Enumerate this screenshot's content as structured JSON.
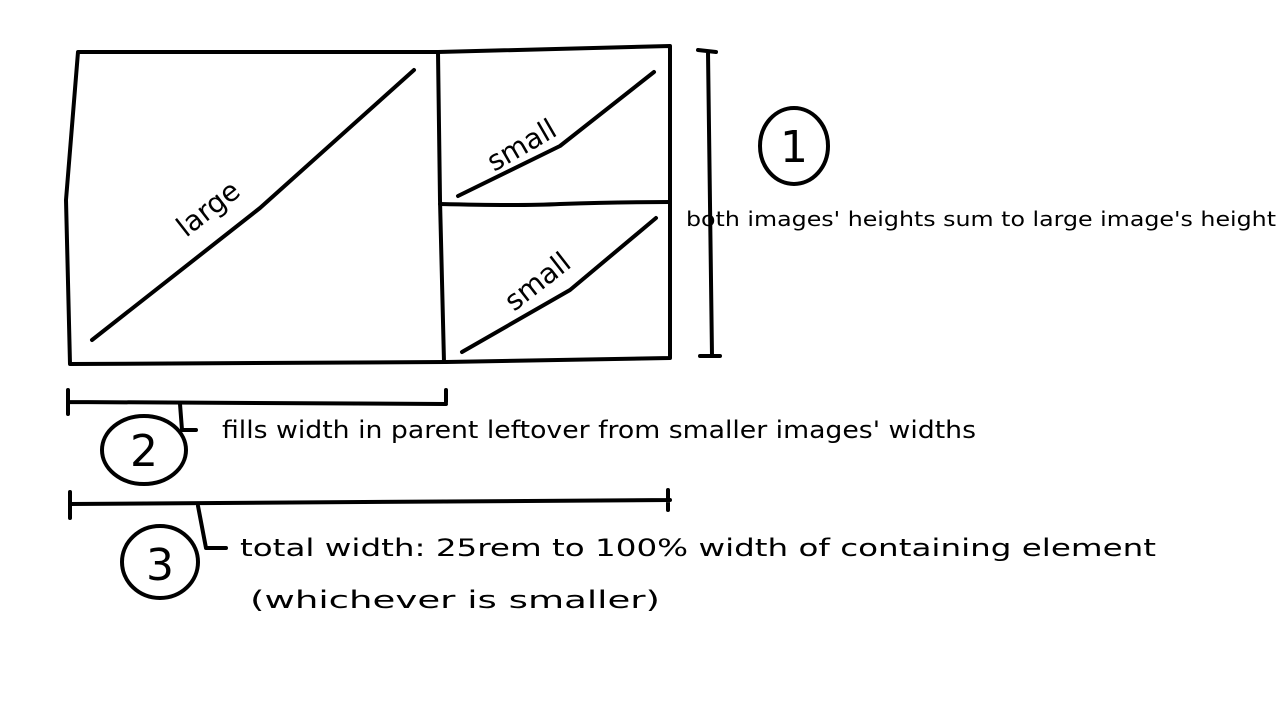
{
  "diagram": {
    "boxes": {
      "large_label": "large",
      "small_top_label": "small",
      "small_bottom_label": "small"
    },
    "annotations": [
      {
        "number": "1",
        "text_lines": [
          "both images' heights sum to large image's height"
        ]
      },
      {
        "number": "2",
        "text_lines": [
          "fills width in parent leftover from smaller images' widths"
        ]
      },
      {
        "number": "3",
        "text_lines": [
          "total width: 25rem to 100% width of containing element",
          "(whichever is smaller)"
        ]
      }
    ]
  },
  "colors": {
    "ink": "#000000",
    "background": "#ffffff"
  }
}
